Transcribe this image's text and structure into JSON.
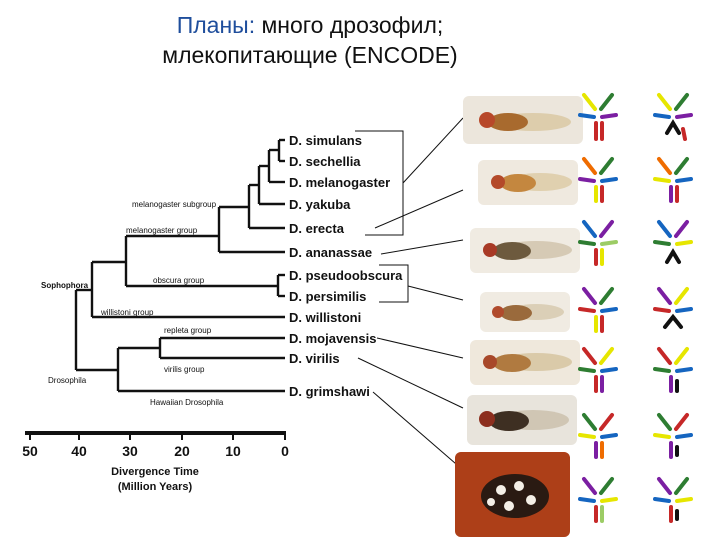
{
  "slide": {
    "title_accent": "Планы:",
    "title_rest": " много дрозофил;",
    "title_line2": "млекопитающие (ENCODE)"
  },
  "species": [
    "D. simulans",
    "D. sechellia",
    "D. melanogaster",
    "D. yakuba",
    "D. erecta",
    "D. ananassae",
    "D. pseudoobscura",
    "D. persimilis",
    "D. willistoni",
    "D. mojavensis",
    "D. virilis",
    "D. grimshawi"
  ],
  "clades": {
    "melanogaster_subgroup": "melanogaster subgroup",
    "melanogaster_group": "melanogaster group",
    "obscura_group": "obscura group",
    "sophophora": "Sophophora",
    "willistoni_group": "willistoni group",
    "repleta_group": "repleta group",
    "virilis_group": "virilis group",
    "drosophila": "Drosophila",
    "hawaiian": "Hawaiian Drosophila"
  },
  "timescale": {
    "ticks": [
      "50",
      "40",
      "30",
      "20",
      "10",
      "0"
    ],
    "label_line1": "Divergence Time",
    "label_line2": "(Million Years)"
  },
  "colors": {
    "title_accent": "#1f4e9c",
    "tree": "#111111",
    "chromosomes": [
      "#e6e600",
      "#2e7d32",
      "#c62828",
      "#1565c0",
      "#7b1fa2",
      "#ef6c00",
      "#111111",
      "#9ccc65"
    ]
  }
}
